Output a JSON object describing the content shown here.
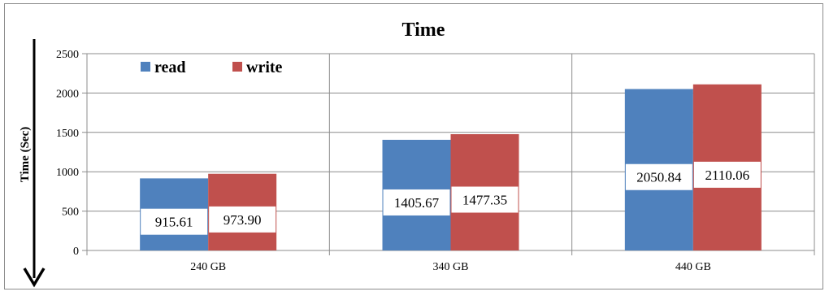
{
  "chart_data": {
    "type": "bar",
    "title": "Time",
    "xlabel": "",
    "ylabel": "Time (Sec)",
    "categories": [
      "240 GB",
      "340 GB",
      "440 GB"
    ],
    "series": [
      {
        "name": "read",
        "values": [
          915.61,
          1405.67,
          2050.84
        ],
        "labels": [
          "915.61",
          "1405.67",
          "2050.84"
        ]
      },
      {
        "name": "write",
        "values": [
          973.9,
          1477.35,
          2110.06
        ],
        "labels": [
          "973.90",
          "1477.35",
          "2110.06"
        ]
      }
    ],
    "ylim": [
      0,
      2500
    ],
    "yticks": [
      "0",
      "500",
      "1000",
      "1500",
      "2000",
      "2500"
    ],
    "grid": true,
    "legend": "top-left",
    "colors": {
      "read": "#4f81bd",
      "write": "#c0504d",
      "grid": "#8c8c8c",
      "axis": "#000000"
    }
  }
}
